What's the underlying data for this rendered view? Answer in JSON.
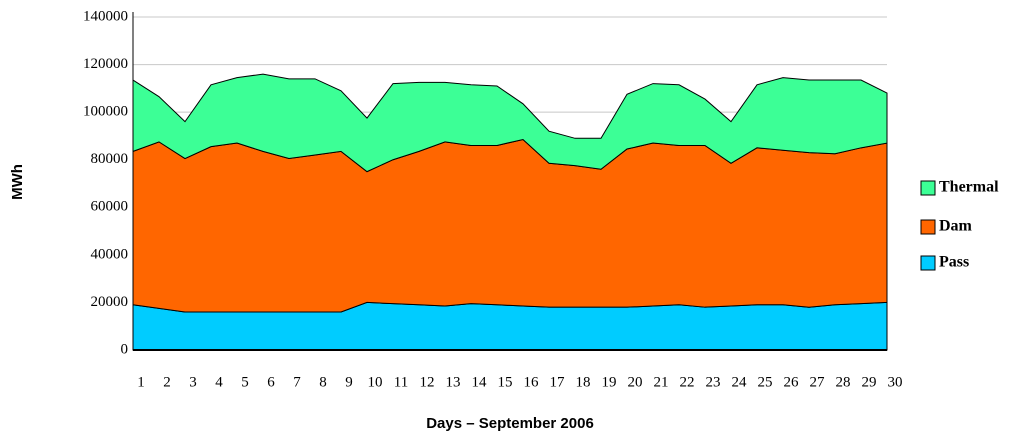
{
  "chart_data": {
    "type": "stacked_area",
    "xlabel": "Days – September 2006",
    "ylabel": "MWh",
    "categories": [
      "1",
      "2",
      "3",
      "4",
      "5",
      "6",
      "7",
      "8",
      "9",
      "10",
      "11",
      "12",
      "13",
      "14",
      "15",
      "16",
      "17",
      "18",
      "19",
      "20",
      "21",
      "22",
      "23",
      "24",
      "25",
      "26",
      "27",
      "28",
      "29",
      "30"
    ],
    "series": [
      {
        "name": "Pass",
        "color": "#00ccff",
        "values": [
          19000,
          17500,
          16000,
          16000,
          16000,
          16000,
          16000,
          16000,
          16000,
          20000,
          19500,
          19000,
          18500,
          19500,
          19000,
          18500,
          18000,
          18000,
          18000,
          18000,
          18500,
          19000,
          18000,
          18500,
          19000,
          19000,
          18000,
          19000,
          19500,
          20000
        ]
      },
      {
        "name": "Dam",
        "color": "#ff6600",
        "values": [
          64500,
          70000,
          64500,
          69500,
          71000,
          67500,
          64500,
          66000,
          67500,
          55000,
          60500,
          64500,
          69000,
          66500,
          67000,
          70000,
          60500,
          59500,
          58000,
          66500,
          68500,
          67000,
          68000,
          60000,
          66000,
          65000,
          65000,
          63500,
          65500,
          67000
        ]
      },
      {
        "name": "Thermal",
        "color": "#3cff96",
        "values": [
          30000,
          19000,
          15500,
          26000,
          27500,
          32500,
          33500,
          32000,
          25500,
          22500,
          32000,
          29000,
          25000,
          25500,
          25000,
          15000,
          13500,
          11500,
          13000,
          23000,
          25000,
          25500,
          19500,
          17500,
          26500,
          30500,
          30500,
          31000,
          28500,
          21000
        ]
      }
    ],
    "ylim": [
      0,
      140000
    ],
    "yticks": [
      0,
      20000,
      40000,
      60000,
      80000,
      100000,
      120000,
      140000
    ],
    "grid": true,
    "legend": "right"
  }
}
